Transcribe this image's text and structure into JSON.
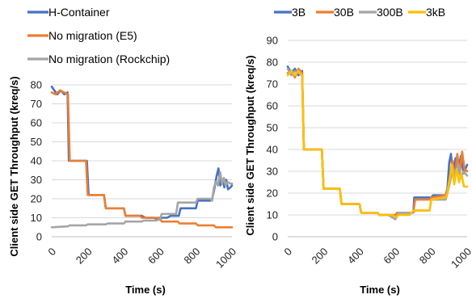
{
  "chart_data": [
    {
      "type": "line",
      "ylabel": "Client side GET Throughput (kreq/s)",
      "xlabel": "Time (s)",
      "xlim": [
        0,
        1000
      ],
      "ylim": [
        0,
        80
      ],
      "x_ticks": [
        "0",
        "200",
        "400",
        "600",
        "800",
        "1000"
      ],
      "y_ticks": [
        "0",
        "10",
        "20",
        "30",
        "40",
        "50",
        "60",
        "70",
        "80"
      ],
      "grid": "horizontal",
      "legend": "top-left",
      "series": [
        {
          "name": "H-Container",
          "color": "#4472C4",
          "points": [
            [
              0,
              79
            ],
            [
              15,
              77
            ],
            [
              30,
              75
            ],
            [
              50,
              77
            ],
            [
              70,
              75
            ],
            [
              88,
              76
            ],
            [
              95,
              40
            ],
            [
              150,
              40
            ],
            [
              165,
              40
            ],
            [
              195,
              40
            ],
            [
              205,
              22
            ],
            [
              290,
              22
            ],
            [
              300,
              15
            ],
            [
              400,
              15
            ],
            [
              410,
              11
            ],
            [
              500,
              11
            ],
            [
              520,
              10
            ],
            [
              570,
              10
            ],
            [
              585,
              9
            ],
            [
              595,
              10
            ],
            [
              640,
              10
            ],
            [
              660,
              11
            ],
            [
              705,
              11
            ],
            [
              715,
              15
            ],
            [
              800,
              15
            ],
            [
              810,
              19
            ],
            [
              880,
              19
            ],
            [
              890,
              20
            ],
            [
              900,
              24
            ],
            [
              915,
              32
            ],
            [
              925,
              36
            ],
            [
              935,
              27
            ],
            [
              948,
              30
            ],
            [
              958,
              26
            ],
            [
              968,
              30
            ],
            [
              978,
              25
            ],
            [
              992,
              26
            ],
            [
              1000,
              27
            ]
          ]
        },
        {
          "name": "No migration (E5)",
          "color": "#ED7D31",
          "points": [
            [
              0,
              76
            ],
            [
              20,
              75
            ],
            [
              45,
              77
            ],
            [
              70,
              76
            ],
            [
              90,
              75
            ],
            [
              100,
              40
            ],
            [
              190,
              40
            ],
            [
              200,
              22
            ],
            [
              290,
              22
            ],
            [
              300,
              15
            ],
            [
              400,
              15
            ],
            [
              410,
              11
            ],
            [
              490,
              11
            ],
            [
              500,
              10
            ],
            [
              600,
              10
            ],
            [
              610,
              8
            ],
            [
              700,
              8
            ],
            [
              710,
              7
            ],
            [
              800,
              7
            ],
            [
              810,
              6
            ],
            [
              900,
              6
            ],
            [
              910,
              5
            ],
            [
              1000,
              5
            ]
          ]
        },
        {
          "name": "No migration (Rockchip)",
          "color": "#A5A5A5",
          "points": [
            [
              0,
              5
            ],
            [
              90,
              5.5
            ],
            [
              100,
              6
            ],
            [
              190,
              6
            ],
            [
              200,
              6.5
            ],
            [
              300,
              6.5
            ],
            [
              310,
              7
            ],
            [
              400,
              7
            ],
            [
              410,
              8
            ],
            [
              500,
              8
            ],
            [
              510,
              8.5
            ],
            [
              580,
              8.5
            ],
            [
              590,
              9
            ],
            [
              600,
              9
            ],
            [
              610,
              12
            ],
            [
              690,
              12
            ],
            [
              700,
              18
            ],
            [
              800,
              18
            ],
            [
              810,
              20
            ],
            [
              880,
              20
            ],
            [
              890,
              19
            ],
            [
              900,
              26
            ],
            [
              912,
              29
            ],
            [
              922,
              27
            ],
            [
              935,
              34
            ],
            [
              945,
              28
            ],
            [
              955,
              31
            ],
            [
              965,
              27
            ],
            [
              975,
              29
            ],
            [
              990,
              28
            ],
            [
              1000,
              28
            ]
          ]
        }
      ]
    },
    {
      "type": "line",
      "ylabel": "Client side GET Throughput (kreq/s)",
      "xlabel": "Time (s)",
      "xlim": [
        0,
        1000
      ],
      "ylim": [
        0,
        90
      ],
      "x_ticks": [
        "0",
        "200",
        "400",
        "600",
        "800",
        "1000"
      ],
      "y_ticks": [
        "0",
        "10",
        "20",
        "30",
        "40",
        "50",
        "60",
        "70",
        "80",
        "90"
      ],
      "grid": "horizontal",
      "legend": "top",
      "series": [
        {
          "name": "3B",
          "color": "#4472C4",
          "points": [
            [
              0,
              78
            ],
            [
              20,
              75
            ],
            [
              40,
              77
            ],
            [
              60,
              74
            ],
            [
              80,
              76
            ],
            [
              90,
              40
            ],
            [
              190,
              40
            ],
            [
              200,
              22
            ],
            [
              290,
              22
            ],
            [
              300,
              15
            ],
            [
              400,
              15
            ],
            [
              410,
              11
            ],
            [
              500,
              11
            ],
            [
              510,
              10
            ],
            [
              580,
              10
            ],
            [
              600,
              9
            ],
            [
              620,
              11
            ],
            [
              700,
              11
            ],
            [
              705,
              18
            ],
            [
              800,
              18
            ],
            [
              810,
              19
            ],
            [
              880,
              19
            ],
            [
              890,
              22
            ],
            [
              900,
              34
            ],
            [
              910,
              38
            ],
            [
              920,
              28
            ],
            [
              935,
              36
            ],
            [
              950,
              30
            ],
            [
              965,
              37
            ],
            [
              980,
              29
            ],
            [
              1000,
              33
            ]
          ]
        },
        {
          "name": "30B",
          "color": "#ED7D31",
          "points": [
            [
              0,
              75
            ],
            [
              20,
              76
            ],
            [
              40,
              73
            ],
            [
              60,
              77
            ],
            [
              80,
              75
            ],
            [
              90,
              40
            ],
            [
              190,
              40
            ],
            [
              200,
              22
            ],
            [
              290,
              22
            ],
            [
              300,
              15
            ],
            [
              400,
              15
            ],
            [
              410,
              11
            ],
            [
              500,
              11
            ],
            [
              510,
              10
            ],
            [
              600,
              10
            ],
            [
              610,
              11
            ],
            [
              700,
              11
            ],
            [
              710,
              17
            ],
            [
              790,
              17
            ],
            [
              800,
              18
            ],
            [
              880,
              19
            ],
            [
              890,
              21
            ],
            [
              905,
              28
            ],
            [
              918,
              35
            ],
            [
              930,
              26
            ],
            [
              945,
              38
            ],
            [
              958,
              29
            ],
            [
              972,
              39
            ],
            [
              985,
              31
            ],
            [
              1000,
              30
            ]
          ]
        },
        {
          "name": "300B",
          "color": "#A5A5A5",
          "points": [
            [
              0,
              77
            ],
            [
              20,
              74
            ],
            [
              40,
              76
            ],
            [
              60,
              75
            ],
            [
              80,
              74
            ],
            [
              90,
              40
            ],
            [
              190,
              40
            ],
            [
              200,
              22
            ],
            [
              290,
              22
            ],
            [
              300,
              15
            ],
            [
              400,
              15
            ],
            [
              410,
              11
            ],
            [
              500,
              11
            ],
            [
              510,
              10
            ],
            [
              560,
              10
            ],
            [
              580,
              9
            ],
            [
              600,
              8
            ],
            [
              620,
              11
            ],
            [
              700,
              11
            ],
            [
              710,
              12
            ],
            [
              790,
              12
            ],
            [
              800,
              17
            ],
            [
              880,
              17
            ],
            [
              890,
              20
            ],
            [
              905,
              25
            ],
            [
              920,
              32
            ],
            [
              935,
              28
            ],
            [
              950,
              33
            ],
            [
              965,
              27
            ],
            [
              980,
              30
            ],
            [
              1000,
              28
            ]
          ]
        },
        {
          "name": "3kB",
          "color": "#FFC000",
          "points": [
            [
              0,
              74
            ],
            [
              20,
              76
            ],
            [
              40,
              74
            ],
            [
              60,
              76
            ],
            [
              80,
              74
            ],
            [
              90,
              40
            ],
            [
              190,
              40
            ],
            [
              200,
              22
            ],
            [
              290,
              22
            ],
            [
              300,
              15
            ],
            [
              400,
              15
            ],
            [
              410,
              11
            ],
            [
              500,
              11
            ],
            [
              510,
              10
            ],
            [
              580,
              10
            ],
            [
              600,
              9
            ],
            [
              620,
              10
            ],
            [
              680,
              10
            ],
            [
              700,
              12
            ],
            [
              790,
              12
            ],
            [
              800,
              17
            ],
            [
              880,
              18
            ],
            [
              890,
              20
            ],
            [
              902,
              26
            ],
            [
              915,
              33
            ],
            [
              928,
              24
            ],
            [
              942,
              31
            ],
            [
              955,
              25
            ],
            [
              968,
              29
            ],
            [
              982,
              23
            ],
            [
              1000,
              23
            ]
          ]
        }
      ]
    }
  ]
}
